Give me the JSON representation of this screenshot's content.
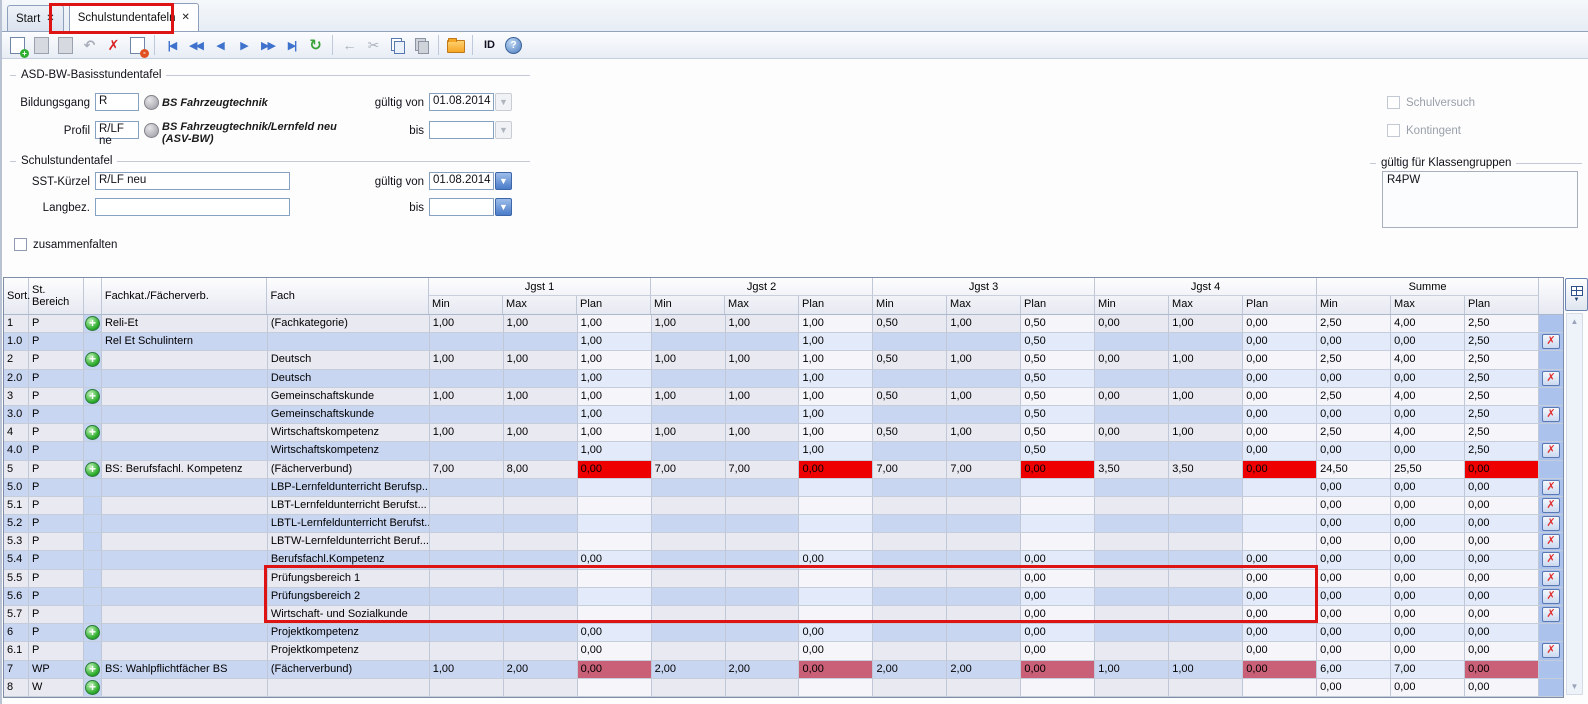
{
  "tabs": {
    "close_glyph": "✕",
    "items": [
      {
        "label": "Start",
        "active": false
      },
      {
        "label": "Schulstundentafeln",
        "active": true
      }
    ]
  },
  "toolbar": {
    "buttons": [
      {
        "name": "new-record-icon",
        "disabled": false
      },
      {
        "name": "save-icon",
        "disabled": true
      },
      {
        "name": "duplicate-record-icon",
        "disabled": true
      },
      {
        "name": "undo-icon",
        "glyph": "↶",
        "disabled": true
      },
      {
        "name": "delete-record-icon",
        "glyph": "✗",
        "disabled": false
      },
      {
        "name": "remove-form-icon",
        "disabled": false
      },
      {
        "name": "sep"
      },
      {
        "name": "nav-first-icon",
        "glyph": "|◀",
        "disabled": false
      },
      {
        "name": "nav-fast-prev-icon",
        "glyph": "◀◀",
        "disabled": false
      },
      {
        "name": "nav-prev-icon",
        "glyph": "◀",
        "disabled": false
      },
      {
        "name": "nav-next-icon",
        "glyph": "▶",
        "disabled": false
      },
      {
        "name": "nav-fast-next-icon",
        "glyph": "▶▶",
        "disabled": false
      },
      {
        "name": "nav-last-icon",
        "glyph": "▶|",
        "disabled": false
      },
      {
        "name": "refresh-icon",
        "glyph": "↻",
        "disabled": false
      },
      {
        "name": "sep"
      },
      {
        "name": "back-arrow-icon",
        "glyph": "←",
        "disabled": true
      },
      {
        "name": "cut-icon",
        "glyph": "✂",
        "disabled": true
      },
      {
        "name": "copy-icon",
        "disabled": false
      },
      {
        "name": "paste-icon",
        "disabled": true
      },
      {
        "name": "sep"
      },
      {
        "name": "folder-icon",
        "disabled": false
      },
      {
        "name": "sep"
      },
      {
        "name": "id-button",
        "label": "ID",
        "disabled": false
      },
      {
        "name": "help-icon",
        "glyph": "?",
        "disabled": false
      }
    ]
  },
  "form": {
    "basis": {
      "legend": "ASD-BW-Basisstundentafel",
      "bildungsgang_label": "Bildungsgang",
      "bildungsgang_value": "R",
      "bildungsgang_desc": "BS Fahrzeugtechnik",
      "gueltig_von_label": "gültig von",
      "gueltig_von_value": "01.08.2014",
      "profil_label": "Profil",
      "profil_value": "R/LF ne",
      "profil_desc": "BS Fahrzeugtechnik/Lernfeld neu (ASV-BW)",
      "bis_label": "bis",
      "bis_value": ""
    },
    "schul": {
      "legend": "Schulstundentafel",
      "sst_label": "SST-Kürzel",
      "sst_value": "R/LF neu",
      "gueltig_von_label": "gültig von",
      "gueltig_von_value": "01.08.2014",
      "langbez_label": "Langbez.",
      "langbez_value": "",
      "bis_label": "bis",
      "bis_value": ""
    },
    "checkboxes": {
      "schulversuch": "Schulversuch",
      "kontingent": "Kontingent",
      "zusammenfalten": "zusammenfalten"
    },
    "klassengruppen": {
      "legend": "gültig für Klassengruppen",
      "items": [
        "R4PW"
      ]
    }
  },
  "table": {
    "left_headers": [
      "Sort.",
      "St.\nBereich",
      "",
      "Fachkat./Fächerverb.",
      "Fach"
    ],
    "groups": [
      "Jgst 1",
      "Jgst 2",
      "Jgst 3",
      "Jgst 4",
      "Summe"
    ],
    "subcolumns": [
      "Min",
      "Max",
      "Plan"
    ],
    "rows": [
      {
        "sort": "1",
        "bereich": "P",
        "plus": true,
        "fachkat": "Reli-Et",
        "fach": "(Fachkategorie)",
        "values": [
          "1,00",
          "1,00",
          "1,00",
          "1,00",
          "1,00",
          "1,00",
          "0,50",
          "1,00",
          "0,50",
          "0,00",
          "1,00",
          "0,00",
          "2,50",
          "4,00",
          "2,50"
        ],
        "plan_flag": null,
        "deletable": false
      },
      {
        "sort": "1.0",
        "bereich": "P",
        "plus": false,
        "fachkat": "Rel Et Schulintern",
        "fach": "",
        "values": [
          "",
          "",
          "1,00",
          "",
          "",
          "1,00",
          "",
          "",
          "0,50",
          "",
          "",
          "0,00",
          "0,00",
          "0,00",
          "2,50"
        ],
        "plan_flag": null,
        "deletable": true
      },
      {
        "sort": "2",
        "bereich": "P",
        "plus": true,
        "fachkat": "",
        "fach": "Deutsch",
        "values": [
          "1,00",
          "1,00",
          "1,00",
          "1,00",
          "1,00",
          "1,00",
          "0,50",
          "1,00",
          "0,50",
          "0,00",
          "1,00",
          "0,00",
          "2,50",
          "4,00",
          "2,50"
        ],
        "plan_flag": null,
        "deletable": false
      },
      {
        "sort": "2.0",
        "bereich": "P",
        "plus": false,
        "fachkat": "",
        "fach": "Deutsch",
        "values": [
          "",
          "",
          "1,00",
          "",
          "",
          "1,00",
          "",
          "",
          "0,50",
          "",
          "",
          "0,00",
          "0,00",
          "0,00",
          "2,50"
        ],
        "plan_flag": null,
        "deletable": true
      },
      {
        "sort": "3",
        "bereich": "P",
        "plus": true,
        "fachkat": "",
        "fach": "Gemeinschaftskunde",
        "values": [
          "1,00",
          "1,00",
          "1,00",
          "1,00",
          "1,00",
          "1,00",
          "0,50",
          "1,00",
          "0,50",
          "0,00",
          "1,00",
          "0,00",
          "2,50",
          "4,00",
          "2,50"
        ],
        "plan_flag": null,
        "deletable": false
      },
      {
        "sort": "3.0",
        "bereich": "P",
        "plus": false,
        "fachkat": "",
        "fach": "Gemeinschaftskunde",
        "values": [
          "",
          "",
          "1,00",
          "",
          "",
          "1,00",
          "",
          "",
          "0,50",
          "",
          "",
          "0,00",
          "0,00",
          "0,00",
          "2,50"
        ],
        "plan_flag": null,
        "deletable": true
      },
      {
        "sort": "4",
        "bereich": "P",
        "plus": true,
        "fachkat": "",
        "fach": "Wirtschaftskompetenz",
        "values": [
          "1,00",
          "1,00",
          "1,00",
          "1,00",
          "1,00",
          "1,00",
          "0,50",
          "1,00",
          "0,50",
          "0,00",
          "1,00",
          "0,00",
          "2,50",
          "4,00",
          "2,50"
        ],
        "plan_flag": null,
        "deletable": false
      },
      {
        "sort": "4.0",
        "bereich": "P",
        "plus": false,
        "fachkat": "",
        "fach": "Wirtschaftskompetenz",
        "values": [
          "",
          "",
          "1,00",
          "",
          "",
          "1,00",
          "",
          "",
          "0,50",
          "",
          "",
          "0,00",
          "0,00",
          "0,00",
          "2,50"
        ],
        "plan_flag": null,
        "deletable": true
      },
      {
        "sort": "5",
        "bereich": "P",
        "plus": true,
        "fachkat": "BS: Berufsfachl. Kompetenz",
        "fach": "(Fächerverbund)",
        "values": [
          "7,00",
          "8,00",
          "0,00",
          "7,00",
          "7,00",
          "0,00",
          "7,00",
          "7,00",
          "0,00",
          "3,50",
          "3,50",
          "0,00",
          "24,50",
          "25,50",
          "0,00"
        ],
        "plan_flag": "red",
        "deletable": false
      },
      {
        "sort": "5.0",
        "bereich": "P",
        "plus": false,
        "fachkat": "",
        "fach": "LBP-Lernfeldunterricht Berufsp...",
        "values": [
          "",
          "",
          "",
          "",
          "",
          "",
          "",
          "",
          "",
          "",
          "",
          "",
          "0,00",
          "0,00",
          "0,00"
        ],
        "plan_flag": null,
        "deletable": true
      },
      {
        "sort": "5.1",
        "bereich": "P",
        "plus": false,
        "fachkat": "",
        "fach": "LBT-Lernfeldunterricht Berufst...",
        "values": [
          "",
          "",
          "",
          "",
          "",
          "",
          "",
          "",
          "",
          "",
          "",
          "",
          "0,00",
          "0,00",
          "0,00"
        ],
        "plan_flag": null,
        "deletable": true
      },
      {
        "sort": "5.2",
        "bereich": "P",
        "plus": false,
        "fachkat": "",
        "fach": "LBTL-Lernfeldunterricht Berufst...",
        "values": [
          "",
          "",
          "",
          "",
          "",
          "",
          "",
          "",
          "",
          "",
          "",
          "",
          "0,00",
          "0,00",
          "0,00"
        ],
        "plan_flag": null,
        "deletable": true
      },
      {
        "sort": "5.3",
        "bereich": "P",
        "plus": false,
        "fachkat": "",
        "fach": "LBTW-Lernfeldunterricht Beruf...",
        "values": [
          "",
          "",
          "",
          "",
          "",
          "",
          "",
          "",
          "",
          "",
          "",
          "",
          "0,00",
          "0,00",
          "0,00"
        ],
        "plan_flag": null,
        "deletable": true
      },
      {
        "sort": "5.4",
        "bereich": "P",
        "plus": false,
        "fachkat": "",
        "fach": "Berufsfachl.Kompetenz",
        "values": [
          "",
          "",
          "0,00",
          "",
          "",
          "0,00",
          "",
          "",
          "0,00",
          "",
          "",
          "0,00",
          "0,00",
          "0,00",
          "0,00"
        ],
        "plan_flag": null,
        "deletable": true
      },
      {
        "sort": "5.5",
        "bereich": "P",
        "plus": false,
        "fachkat": "",
        "fach": "Prüfungsbereich 1",
        "values": [
          "",
          "",
          "",
          "",
          "",
          "",
          "",
          "",
          "0,00",
          "",
          "",
          "0,00",
          "0,00",
          "0,00",
          "0,00"
        ],
        "plan_flag": null,
        "deletable": true
      },
      {
        "sort": "5.6",
        "bereich": "P",
        "plus": false,
        "fachkat": "",
        "fach": "Prüfungsbereich 2",
        "values": [
          "",
          "",
          "",
          "",
          "",
          "",
          "",
          "",
          "0,00",
          "",
          "",
          "0,00",
          "0,00",
          "0,00",
          "0,00"
        ],
        "plan_flag": null,
        "deletable": true
      },
      {
        "sort": "5.7",
        "bereich": "P",
        "plus": false,
        "fachkat": "",
        "fach": "Wirtschaft- und Sozialkunde",
        "values": [
          "",
          "",
          "",
          "",
          "",
          "",
          "",
          "",
          "0,00",
          "",
          "",
          "0,00",
          "0,00",
          "0,00",
          "0,00"
        ],
        "plan_flag": null,
        "deletable": true
      },
      {
        "sort": "6",
        "bereich": "P",
        "plus": true,
        "fachkat": "",
        "fach": "Projektkompetenz",
        "values": [
          "",
          "",
          "0,00",
          "",
          "",
          "0,00",
          "",
          "",
          "0,00",
          "",
          "",
          "0,00",
          "0,00",
          "0,00",
          "0,00"
        ],
        "plan_flag": null,
        "deletable": false
      },
      {
        "sort": "6.1",
        "bereich": "P",
        "plus": false,
        "fachkat": "",
        "fach": "Projektkompetenz",
        "values": [
          "",
          "",
          "0,00",
          "",
          "",
          "0,00",
          "",
          "",
          "0,00",
          "",
          "",
          "0,00",
          "0,00",
          "0,00",
          "0,00"
        ],
        "plan_flag": null,
        "deletable": true
      },
      {
        "sort": "7",
        "bereich": "WP",
        "plus": true,
        "fachkat": "BS: Wahlpflichtfächer BS",
        "fach": "(Fächerverbund)",
        "values": [
          "1,00",
          "2,00",
          "0,00",
          "2,00",
          "2,00",
          "0,00",
          "2,00",
          "2,00",
          "0,00",
          "1,00",
          "1,00",
          "0,00",
          "6,00",
          "7,00",
          "0,00"
        ],
        "plan_flag": "pink",
        "deletable": false
      },
      {
        "sort": "8",
        "bereich": "W",
        "plus": true,
        "fachkat": "",
        "fach": "",
        "values": [
          "",
          "",
          "",
          "",
          "",
          "",
          "",
          "",
          "",
          "",
          "",
          "",
          "0,00",
          "0,00",
          "0,00"
        ],
        "plan_flag": null,
        "deletable": false
      }
    ]
  },
  "colors": {
    "annotation_red": "#de1414",
    "cell_error_red": "#ee0000",
    "cell_warn_pink": "#c96077",
    "row_light": "#e9e9f1",
    "row_blue": "#c9d6f2",
    "plan_light_blue": "#e3ebfa",
    "delete_x_red": "#e03030",
    "add_green": "#2fae2f",
    "folder_orange": "#f5a623"
  }
}
